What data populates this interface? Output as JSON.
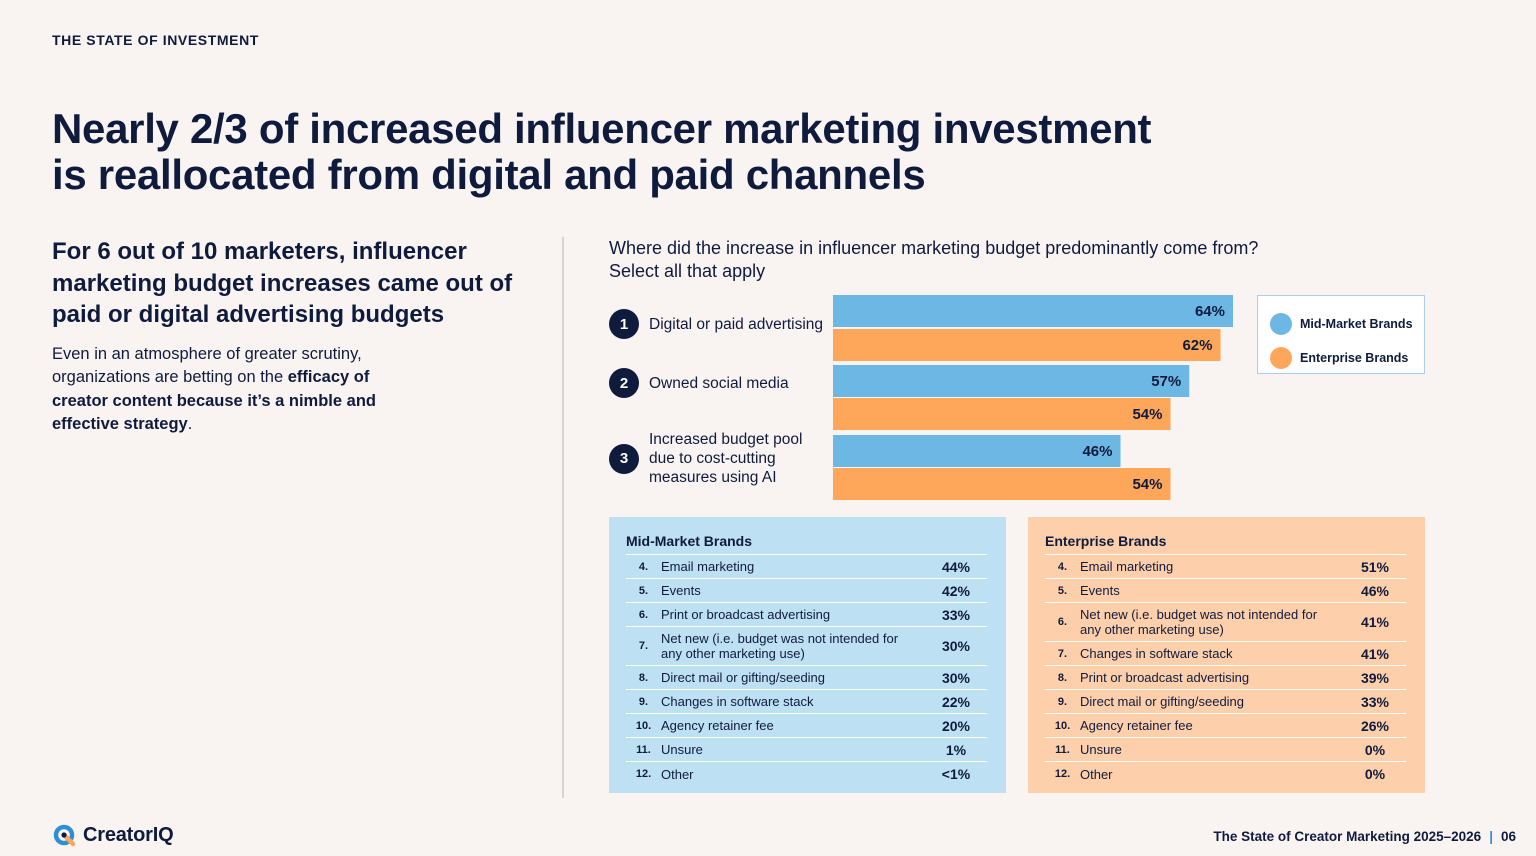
{
  "section_label": "THE STATE OF INVESTMENT",
  "headline": {
    "line1": "Nearly 2/3 of increased influencer marketing investment",
    "line2": "is reallocated from digital and paid channels"
  },
  "left": {
    "subheadline": "For 6 out of 10 marketers, influencer marketing budget increases came out of paid or digital advertising budgets",
    "body_plain": "Even in an atmosphere of greater scrutiny, organizations are betting on the ",
    "body_bold": "efficacy of creator content because it’s a nimble and effective strategy",
    "body_end": "."
  },
  "question": {
    "line1": "Where did the increase in influencer marketing budget predominantly come from?",
    "line2": "Select all that apply"
  },
  "colors": {
    "mid_market": "#6db7e4",
    "enterprise": "#fea75b",
    "navy": "#0f1b3d",
    "accent": "#2f8fd6"
  },
  "chart_data": {
    "type": "bar",
    "orientation": "horizontal",
    "categories": [
      "Digital or paid advertising",
      "Owned social media",
      "Increased budget pool due to cost-cutting measures using AI"
    ],
    "category_numbers": [
      "1",
      "2",
      "3"
    ],
    "series": [
      {
        "name": "Mid-Market Brands",
        "values": [
          64,
          57,
          46
        ],
        "labels": [
          "64%",
          "57%",
          "46%"
        ]
      },
      {
        "name": "Enterprise Brands",
        "values": [
          62,
          54,
          54
        ],
        "labels": [
          "62%",
          "54%",
          "54%"
        ]
      }
    ],
    "xlim": [
      0,
      100
    ],
    "legend_position": "top-right"
  },
  "legend": {
    "mid_market": "Mid-Market Brands",
    "enterprise": "Enterprise Brands"
  },
  "tables": {
    "mid_market": {
      "title": "Mid-Market Brands",
      "rows": [
        {
          "num": "4.",
          "label": "Email marketing",
          "value": "44%"
        },
        {
          "num": "5.",
          "label": "Events",
          "value": "42%"
        },
        {
          "num": "6.",
          "label": "Print or broadcast advertising",
          "value": "33%"
        },
        {
          "num": "7.",
          "label": "Net new (i.e. budget was not intended for any other marketing use)",
          "value": "30%",
          "tall": true
        },
        {
          "num": "8.",
          "label": "Direct mail or gifting/seeding",
          "value": "30%"
        },
        {
          "num": "9.",
          "label": "Changes in software stack",
          "value": "22%"
        },
        {
          "num": "10.",
          "label": "Agency retainer fee",
          "value": "20%"
        },
        {
          "num": "11.",
          "label": "Unsure",
          "value": "1%"
        },
        {
          "num": "12.",
          "label": "Other",
          "value": "<1%"
        }
      ]
    },
    "enterprise": {
      "title": "Enterprise Brands",
      "rows": [
        {
          "num": "4.",
          "label": "Email marketing",
          "value": "51%"
        },
        {
          "num": "5.",
          "label": "Events",
          "value": "46%"
        },
        {
          "num": "6.",
          "label": "Net new (i.e. budget was not intended for any other marketing use)",
          "value": "41%",
          "tall": true
        },
        {
          "num": "7.",
          "label": "Changes in software stack",
          "value": "41%"
        },
        {
          "num": "8.",
          "label": "Print or broadcast advertising",
          "value": "39%"
        },
        {
          "num": "9.",
          "label": "Direct mail or gifting/seeding",
          "value": "33%"
        },
        {
          "num": "10.",
          "label": "Agency retainer fee",
          "value": "26%"
        },
        {
          "num": "11.",
          "label": "Unsure",
          "value": "0%"
        },
        {
          "num": "12.",
          "label": "Other",
          "value": "0%"
        }
      ]
    }
  },
  "brand": {
    "logo_text": "CreatorIQ",
    "logo_icon": "creatoriq-logo-icon"
  },
  "footer": {
    "report_title": "The State of Creator Marketing 2025–2026",
    "separator": "|",
    "page_number": "06"
  }
}
